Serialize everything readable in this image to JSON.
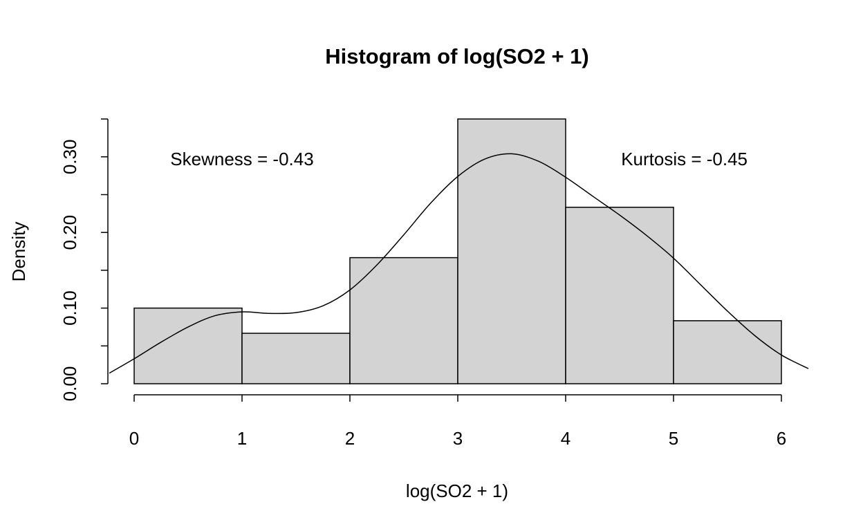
{
  "chart_data": {
    "type": "bar",
    "title": "Histogram of log(SO2 + 1)",
    "xlabel": "log(SO2 + 1)",
    "ylabel": "Density",
    "bins": [
      {
        "start": 0,
        "end": 1,
        "density": 0.1
      },
      {
        "start": 1,
        "end": 2,
        "density": 0.0667
      },
      {
        "start": 2,
        "end": 3,
        "density": 0.1667
      },
      {
        "start": 3,
        "end": 4,
        "density": 0.35
      },
      {
        "start": 4,
        "end": 5,
        "density": 0.2333
      },
      {
        "start": 5,
        "end": 6,
        "density": 0.0833
      }
    ],
    "xlim": [
      -0.23,
      6.25
    ],
    "ylim": [
      0,
      0.35
    ],
    "x_ticks": [
      "0",
      "1",
      "2",
      "3",
      "4",
      "5",
      "6"
    ],
    "y_ticks": [
      "0.00",
      "0.10",
      "0.20",
      "0.30"
    ],
    "y_tick_values": [
      0,
      0.05,
      0.1,
      0.15,
      0.2,
      0.25,
      0.3,
      0.35
    ],
    "bar_fill": "#d3d3d3",
    "density_curve": {
      "x": [
        -0.23,
        0,
        0.25,
        0.5,
        0.75,
        1.0,
        1.25,
        1.5,
        1.75,
        2.0,
        2.25,
        2.5,
        2.75,
        3.0,
        3.25,
        3.5,
        3.75,
        4.0,
        4.25,
        4.5,
        4.75,
        5.0,
        5.25,
        5.5,
        5.75,
        6.0,
        6.25
      ],
      "y": [
        0.014,
        0.033,
        0.055,
        0.075,
        0.09,
        0.095,
        0.093,
        0.094,
        0.103,
        0.124,
        0.157,
        0.197,
        0.239,
        0.274,
        0.297,
        0.304,
        0.294,
        0.273,
        0.248,
        0.223,
        0.196,
        0.166,
        0.131,
        0.096,
        0.064,
        0.038,
        0.02
      ]
    },
    "annotations": [
      {
        "text": "Skewness = -0.43",
        "x": 1.0,
        "y": 0.297
      },
      {
        "text": "Kurtosis = -0.45",
        "x": 5.1,
        "y": 0.297
      }
    ]
  }
}
